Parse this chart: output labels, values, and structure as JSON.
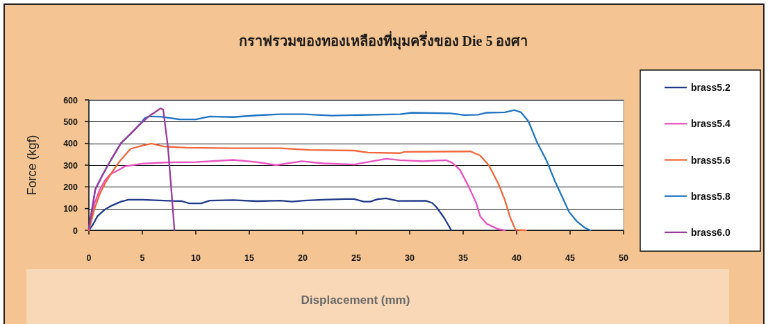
{
  "chart_data": {
    "type": "line",
    "title": "กราฟรวมของทองเหลืองที่มุมครึ่งของ Die 5 องศา",
    "xlabel": "Displacement (mm)",
    "ylabel": "Force (kgf)",
    "xlim": [
      0,
      50
    ],
    "ylim": [
      0,
      600
    ],
    "xticks": [
      0,
      5,
      10,
      15,
      20,
      25,
      30,
      35,
      40,
      45,
      50
    ],
    "yticks": [
      0,
      100,
      200,
      300,
      400,
      500,
      600
    ],
    "grid": "y",
    "legend": "right",
    "series": [
      {
        "name": "brass5.2",
        "color": "#1f3a8a",
        "x": [
          0,
          0.4,
          0.8,
          1.5,
          2.1,
          3,
          3.7,
          5,
          7,
          8.7,
          9.4,
          10.5,
          11.3,
          13.5,
          15.7,
          17.9,
          19,
          20.1,
          21.9,
          24,
          24.8,
          25.7,
          26.3,
          27,
          27.8,
          28.9,
          31.5,
          32.1,
          32.5,
          33.2,
          33.9
        ],
        "values": [
          0,
          28,
          65,
          96,
          113,
          132,
          141,
          141,
          137,
          134,
          124,
          124,
          137,
          139,
          134,
          137,
          132,
          137,
          141,
          144,
          144,
          132,
          132,
          143,
          147,
          135,
          136,
          126,
          107,
          59,
          0
        ]
      },
      {
        "name": "brass5.4",
        "color": "#e94fbf",
        "x": [
          0,
          0.5,
          1,
          1.5,
          2,
          2.6,
          3.4,
          5,
          7,
          10,
          13.5,
          15.7,
          17.5,
          19.9,
          21.9,
          24.8,
          26.5,
          27.8,
          29.1,
          31.2,
          33.4,
          34,
          34.7,
          35.5,
          36.2,
          36.6,
          37.2,
          38.3,
          38.9
        ],
        "values": [
          0,
          120,
          185,
          230,
          258,
          273,
          295,
          307,
          312,
          314,
          324,
          314,
          300,
          318,
          308,
          303,
          318,
          329,
          323,
          318,
          323,
          310,
          278,
          203,
          128,
          64,
          30,
          5,
          0
        ]
      },
      {
        "name": "brass5.6",
        "color": "#f0663a",
        "x": [
          0,
          0.5,
          1,
          1.5,
          2,
          2.5,
          3,
          3.9,
          5,
          5.85,
          7,
          9.1,
          13.5,
          17.9,
          20.6,
          24.8,
          26.1,
          29.1,
          29.5,
          35.7,
          36.6,
          37.4,
          38.3,
          38.9,
          39.4,
          39.9,
          40.9
        ],
        "values": [
          0,
          95,
          165,
          215,
          255,
          292,
          325,
          375,
          390,
          399,
          386,
          380,
          378,
          378,
          370,
          367,
          358,
          355,
          361,
          363,
          344,
          299,
          214,
          139,
          59,
          2,
          0
        ]
      },
      {
        "name": "brass5.8",
        "color": "#1f74c4",
        "x": [
          0,
          0.6,
          1.25,
          2.1,
          3,
          3.9,
          4.76,
          5.2,
          5.6,
          6.7,
          8.5,
          10,
          11.3,
          13.5,
          15.7,
          17.9,
          20.1,
          22.7,
          29.1,
          30.2,
          33.8,
          35.1,
          36.4,
          37.2,
          38.9,
          39.8,
          40.4,
          41.1,
          41.9,
          42.8,
          43.6,
          44.3,
          44.9,
          45.6,
          46.4,
          46.9
        ],
        "values": [
          10,
          188,
          252,
          327,
          401,
          444,
          487,
          515,
          524,
          523,
          510,
          510,
          524,
          521,
          529,
          534,
          534,
          528,
          534,
          541,
          538,
          530,
          532,
          541,
          543,
          553,
          543,
          502,
          406,
          321,
          224,
          150,
          85,
          43,
          11,
          0
        ]
      },
      {
        "name": "brass6.0",
        "color": "#9a3a9c",
        "x": [
          0,
          0.6,
          1.25,
          2.1,
          3,
          3.9,
          4.76,
          5.6,
          6.7,
          6.95,
          7.4,
          7.83,
          8
        ],
        "values": [
          10,
          188,
          252,
          327,
          401,
          444,
          487,
          524,
          561,
          556,
          380,
          113,
          0
        ]
      }
    ]
  }
}
